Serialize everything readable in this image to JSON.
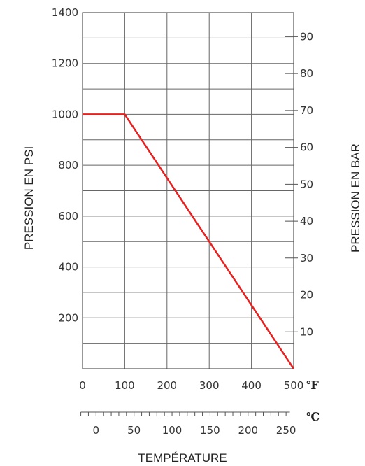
{
  "chart_data": {
    "type": "line",
    "title": "",
    "ylabel_left": "PRESSION EN PSI",
    "ylabel_right": "PRESSION EN BAR",
    "xlabel": "TEMPÉRATURE",
    "x_unit_primary": "℉",
    "x_unit_secondary": "℃",
    "xlim": [
      0,
      500
    ],
    "ylim": [
      0,
      1400
    ],
    "xticks": [
      0,
      100,
      200,
      300,
      400,
      500
    ],
    "yticks_left": [
      200,
      400,
      600,
      800,
      1000,
      1200,
      1400
    ],
    "celsius_ticks": [
      0,
      50,
      100,
      150,
      200,
      250
    ],
    "bar_ticks": [
      10,
      20,
      30,
      40,
      50,
      60,
      70,
      80,
      90
    ],
    "grid": true,
    "line_color": "#e8201f",
    "series": [
      {
        "x": [
          0,
          100,
          500
        ],
        "y": [
          1000,
          1000,
          0
        ]
      }
    ]
  }
}
